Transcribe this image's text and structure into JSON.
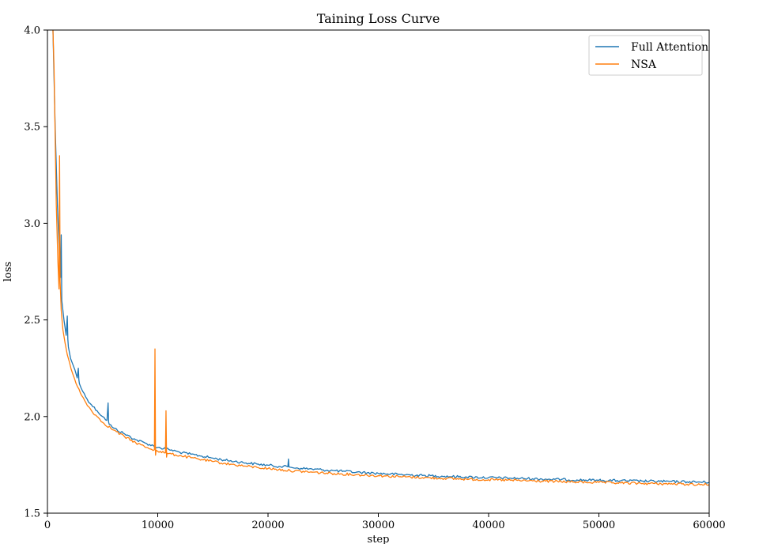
{
  "chart_data": {
    "type": "line",
    "title": "Taining Loss Curve",
    "xlabel": "step",
    "ylabel": "loss",
    "xlim": [
      0,
      60000
    ],
    "ylim": [
      1.5,
      4.0
    ],
    "xticks": [
      0,
      10000,
      20000,
      30000,
      40000,
      50000,
      60000
    ],
    "yticks": [
      1.5,
      2.0,
      2.5,
      3.0,
      3.5,
      4.0
    ],
    "grid": false,
    "legend_position": "top-right",
    "series": [
      {
        "name": "Full Attention",
        "color": "#1f77b4",
        "x": [
          500,
          700,
          900,
          1100,
          1200,
          1250,
          1300,
          1500,
          1700,
          1800,
          1850,
          1900,
          2100,
          2300,
          2500,
          2700,
          2800,
          2850,
          2900,
          3200,
          3600,
          4000,
          4500,
          5000,
          5400,
          5500,
          5550,
          5600,
          6000,
          7000,
          8000,
          9000,
          10000,
          11000,
          12000,
          13000,
          14000,
          15000,
          16000,
          17000,
          18000,
          19000,
          20000,
          21000,
          21800,
          21850,
          21900,
          22000,
          23000,
          24000,
          25000,
          26000,
          27000,
          28000,
          29000,
          30000,
          32000,
          34000,
          36000,
          38000,
          40000,
          42000,
          44000,
          46000,
          48000,
          50000,
          52000,
          54000,
          56000,
          58000,
          60000
        ],
        "y": [
          4.0,
          3.5,
          3.1,
          2.82,
          2.72,
          2.94,
          2.6,
          2.5,
          2.42,
          2.52,
          2.4,
          2.36,
          2.3,
          2.27,
          2.24,
          2.2,
          2.25,
          2.19,
          2.17,
          2.13,
          2.09,
          2.06,
          2.03,
          2.0,
          1.98,
          2.07,
          1.97,
          1.96,
          1.94,
          1.91,
          1.88,
          1.86,
          1.84,
          1.83,
          1.815,
          1.805,
          1.795,
          1.785,
          1.775,
          1.768,
          1.76,
          1.754,
          1.748,
          1.742,
          1.74,
          1.78,
          1.74,
          1.738,
          1.732,
          1.728,
          1.724,
          1.72,
          1.716,
          1.712,
          1.709,
          1.706,
          1.7,
          1.695,
          1.691,
          1.687,
          1.684,
          1.681,
          1.678,
          1.675,
          1.672,
          1.67,
          1.668,
          1.666,
          1.664,
          1.662,
          1.66
        ]
      },
      {
        "name": "NSA",
        "color": "#ff7f0e",
        "x": [
          500,
          600,
          800,
          950,
          1050,
          1100,
          1150,
          1250,
          1400,
          1600,
          1800,
          2000,
          2300,
          2600,
          3000,
          3500,
          4000,
          4500,
          5000,
          6000,
          7000,
          8000,
          9000,
          9700,
          9750,
          9800,
          9850,
          9900,
          10000,
          10700,
          10750,
          10800,
          10850,
          11000,
          12000,
          13000,
          14000,
          15000,
          16000,
          17000,
          18000,
          19000,
          20000,
          22000,
          24000,
          26000,
          28000,
          30000,
          32000,
          34000,
          36000,
          38000,
          40000,
          42000,
          44000,
          46000,
          48000,
          50000,
          52000,
          54000,
          56000,
          58000,
          60000
        ],
        "y": [
          4.0,
          3.8,
          3.1,
          2.8,
          2.66,
          3.35,
          2.7,
          2.55,
          2.45,
          2.38,
          2.32,
          2.28,
          2.22,
          2.17,
          2.12,
          2.07,
          2.03,
          2.0,
          1.97,
          1.93,
          1.895,
          1.865,
          1.84,
          1.828,
          2.35,
          1.8,
          1.826,
          1.824,
          1.82,
          1.812,
          2.03,
          1.79,
          1.81,
          1.808,
          1.798,
          1.787,
          1.777,
          1.767,
          1.758,
          1.75,
          1.743,
          1.737,
          1.731,
          1.72,
          1.712,
          1.705,
          1.699,
          1.694,
          1.689,
          1.684,
          1.68,
          1.676,
          1.673,
          1.67,
          1.667,
          1.664,
          1.661,
          1.659,
          1.656,
          1.654,
          1.652,
          1.65,
          1.648
        ]
      }
    ]
  }
}
